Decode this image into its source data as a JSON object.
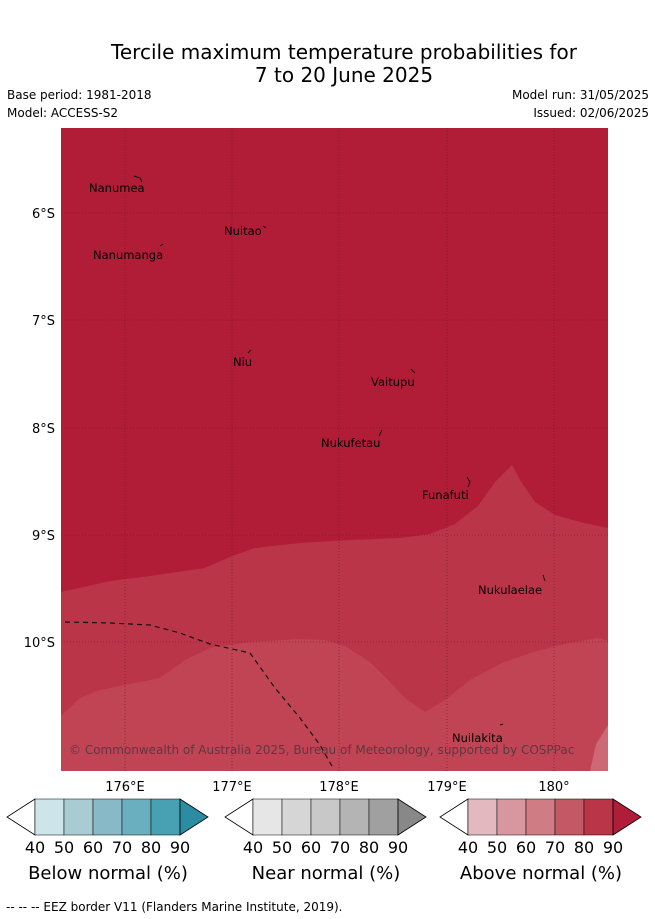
{
  "title_line1": "Tercile maximum temperature probabilities for",
  "title_line2": "7 to 20 June 2025",
  "base_period": "Base period: 1981-2018",
  "model": "Model: ACCESS-S2",
  "model_run": "Model run: 31/05/2025",
  "issued": "Issued: 02/06/2025",
  "lat_labels": [
    "6°S",
    "7°S",
    "8°S",
    "9°S",
    "10°S"
  ],
  "lon_labels": [
    "176°E",
    "177°E",
    "178°E",
    "179°E",
    "180°"
  ],
  "places": [
    "Nanumea",
    "Nuitao",
    "Nanumanga",
    "Niu",
    "Vaitupu",
    "Nukufetau",
    "Funafuti",
    "Nukulaelae",
    "Nuilakita"
  ],
  "copyright": "© Commonwealth of Australia 2025, Bureau of Meteorology, supported by COSPPac",
  "colorbars": [
    {
      "label": "Below normal (%)",
      "ticks": [
        "40",
        "50",
        "60",
        "70",
        "80",
        "90"
      ],
      "colors": [
        "#ffffff",
        "#cde4ea",
        "#a9ccd3",
        "#88b9c6",
        "#6aafbf",
        "#48a1b3",
        "#2b8ca2"
      ]
    },
    {
      "label": "Near normal (%)",
      "ticks": [
        "40",
        "50",
        "60",
        "70",
        "80",
        "90"
      ],
      "colors": [
        "#ffffff",
        "#e6e6e6",
        "#d6d6d6",
        "#c8c8c8",
        "#b4b4b4",
        "#a0a0a0",
        "#888888"
      ]
    },
    {
      "label": "Above normal (%)",
      "ticks": [
        "40",
        "50",
        "60",
        "70",
        "80",
        "90"
      ],
      "colors": [
        "#ffffff",
        "#e3b9bf",
        "#d8979e",
        "#cf7c84",
        "#c45966",
        "#bb3548",
        "#b01d38"
      ]
    }
  ],
  "footer": "--  --  -- EEZ border V11 (Flanders Marine Institute, 2019)."
}
